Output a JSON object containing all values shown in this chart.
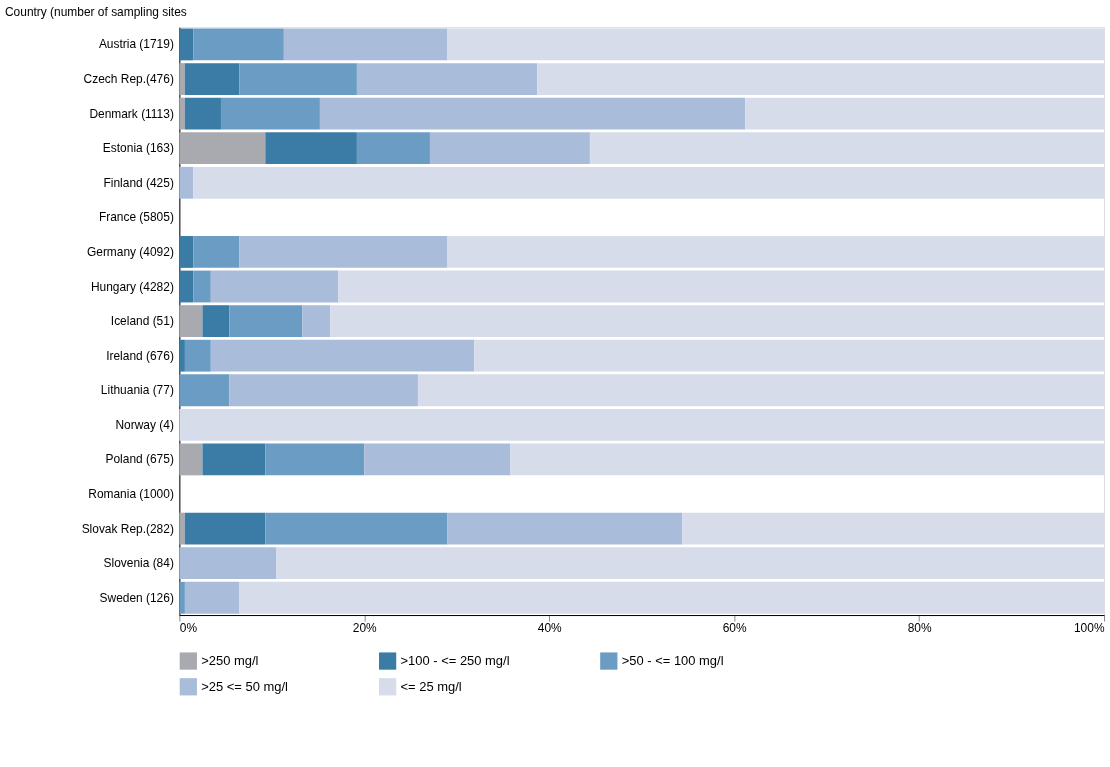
{
  "chart_data": {
    "type": "bar",
    "orientation": "horizontal",
    "stacked": true,
    "ylabel": "Country (number of sampling sites",
    "categories": [
      "Austria (1719)",
      "Czech Rep.(476)",
      "Denmark (1113)",
      "Estonia (163)",
      "Finland (425)",
      "France (5805)",
      "Germany (4092)",
      "Hungary (4282)",
      "Iceland (51)",
      "Ireland (676)",
      "Lithuania (77)",
      "Norway (4)",
      "Poland (675)",
      "Romania (1000)",
      "Slovak Rep.(282)",
      "Slovenia (84)",
      "Sweden (126)"
    ],
    "series": [
      {
        "name": ">250 mg/l",
        "color": "#a8aab0",
        "values": [
          0,
          0.6,
          0.6,
          9.3,
          0,
          null,
          0,
          0,
          2.5,
          0,
          0,
          0,
          2.5,
          null,
          0.6,
          0,
          0
        ]
      },
      {
        "name": ">100 - <= 250 mg/l",
        "color": "#3a7ca5",
        "values": [
          1.5,
          5.9,
          3.9,
          9.9,
          0,
          null,
          1.5,
          1.5,
          2.9,
          0.6,
          0,
          0,
          6.8,
          null,
          8.7,
          0,
          0
        ]
      },
      {
        "name": ">50 - <= 100 mg/l",
        "color": "#6b9cc4",
        "values": [
          9.8,
          12.7,
          10.7,
          7.9,
          0,
          null,
          5,
          1.9,
          7.9,
          2.8,
          5.4,
          0,
          10.7,
          null,
          19.7,
          0,
          0.6
        ]
      },
      {
        "name": ">25 <= 50 mg/l",
        "color": "#a9bcd9",
        "values": [
          17.7,
          19.5,
          46,
          17.3,
          1.5,
          null,
          22.5,
          13.8,
          3,
          28.5,
          20.4,
          0,
          15.8,
          null,
          25.4,
          10.5,
          5.9
        ]
      },
      {
        "name": "<= 25 mg/l",
        "color": "#d6dcea",
        "values": [
          71,
          61.3,
          38.8,
          55.6,
          98.5,
          null,
          71,
          82.8,
          83.7,
          68.1,
          74.2,
          100,
          64.2,
          null,
          45.6,
          89.5,
          93.5
        ]
      }
    ],
    "xlim": [
      0,
      100
    ],
    "xticks": [
      {
        "value": 0,
        "label": "0%"
      },
      {
        "value": 20,
        "label": "20%"
      },
      {
        "value": 40,
        "label": "40%"
      },
      {
        "value": 60,
        "label": "60%"
      },
      {
        "value": 80,
        "label": "80%"
      },
      {
        "value": 100,
        "label": "100%"
      }
    ],
    "grid": false,
    "legend": "bottom"
  }
}
